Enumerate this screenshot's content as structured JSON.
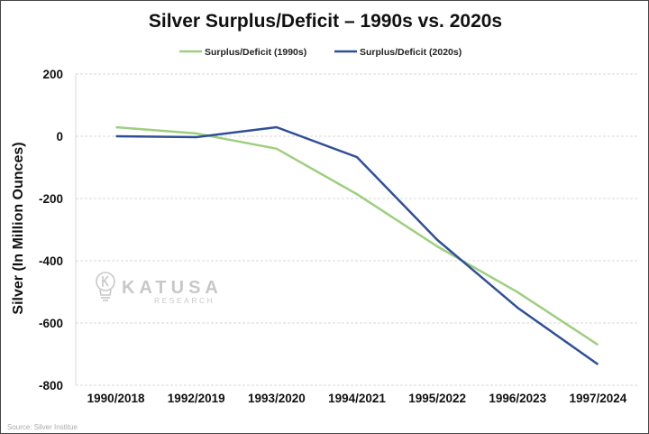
{
  "chart_data": {
    "type": "line",
    "title": "Silver Surplus/Deficit – 1990s vs. 2020s",
    "xlabel": "",
    "ylabel": "Silver (In Million Ounces)",
    "ylim": [
      -800,
      200
    ],
    "yticks": [
      200,
      0,
      -200,
      -400,
      -600,
      -800
    ],
    "grid": true,
    "legend_position": "top",
    "categories": [
      "1990/2018",
      "1992/2019",
      "1993/2020",
      "1994/2021",
      "1995/2022",
      "1996/2023",
      "1997/2024"
    ],
    "series": [
      {
        "name": "Surplus/Deficit (1990s)",
        "color": "#9dcf7e",
        "values": [
          29,
          9,
          -40,
          -186,
          -354,
          -501,
          -670
        ]
      },
      {
        "name": "Surplus/Deficit (2020s)",
        "color": "#2f4f98",
        "values": [
          0,
          -3,
          29,
          -67,
          -333,
          -551,
          -733
        ]
      }
    ],
    "source": "Source: Silver Institue",
    "watermark": {
      "brand": "KATUSA",
      "sub": "RESEARCH"
    }
  }
}
